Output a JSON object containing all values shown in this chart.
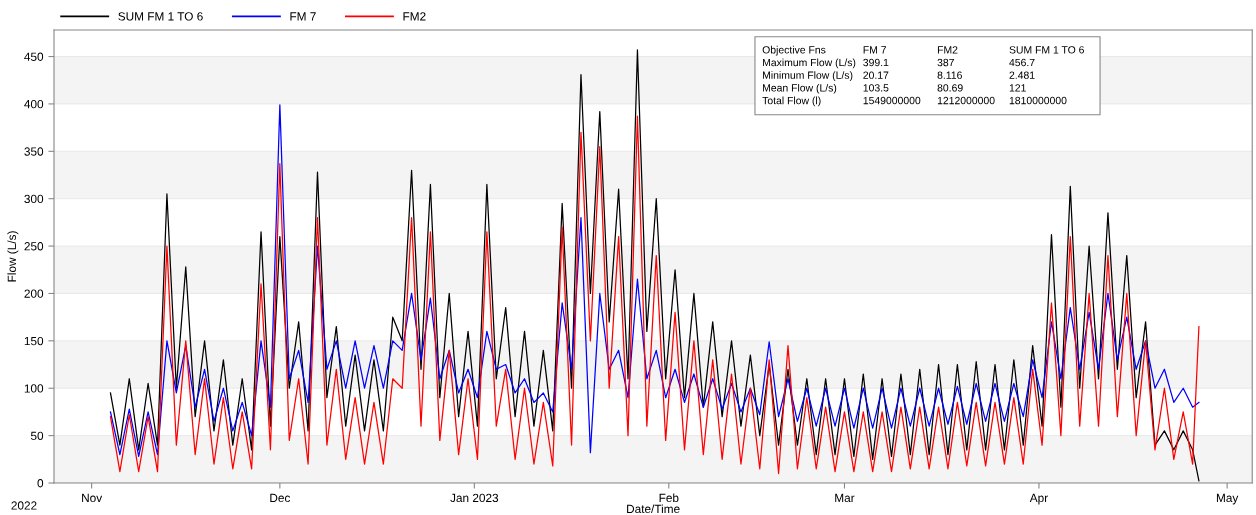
{
  "chart_data": {
    "type": "line",
    "xlabel": "Date/Time",
    "ylabel": "Flow (L/s)",
    "xlim": [
      "2022-10-26",
      "2023-05-05"
    ],
    "xticks": [
      {
        "value": "2022-11-01",
        "label": "Nov"
      },
      {
        "value": "2022-12-01",
        "label": "Dec"
      },
      {
        "value": "2023-01-01",
        "label": "Jan 2023"
      },
      {
        "value": "2023-02-01",
        "label": "Feb"
      },
      {
        "value": "2023-03-01",
        "label": "Mar"
      },
      {
        "value": "2023-04-01",
        "label": "Apr"
      },
      {
        "value": "2023-05-01",
        "label": "May"
      }
    ],
    "ylim": [
      0,
      478
    ],
    "yticks": [
      0,
      50,
      100,
      150,
      200,
      250,
      300,
      350,
      400,
      450
    ],
    "grid": "y",
    "legend": "top left",
    "line_style": "solid",
    "marker": "none",
    "x": [
      "2022-11-04T00:00",
      "2022-11-05T12:00",
      "2022-11-07T00:00",
      "2022-11-08T12:00",
      "2022-11-10T00:00",
      "2022-11-11T12:00",
      "2022-11-13T00:00",
      "2022-11-14T12:00",
      "2022-11-16T00:00",
      "2022-11-17T12:00",
      "2022-11-19T00:00",
      "2022-11-20T12:00",
      "2022-11-22T00:00",
      "2022-11-23T12:00",
      "2022-11-25T00:00",
      "2022-11-26T12:00",
      "2022-11-28T00:00",
      "2022-11-29T12:00",
      "2022-12-01T00:00",
      "2022-12-02T12:00",
      "2022-12-04T00:00",
      "2022-12-05T12:00",
      "2022-12-07T00:00",
      "2022-12-08T12:00",
      "2022-12-10T00:00",
      "2022-12-11T12:00",
      "2022-12-13T00:00",
      "2022-12-14T12:00",
      "2022-12-16T00:00",
      "2022-12-17T12:00",
      "2022-12-19T00:00",
      "2022-12-20T12:00",
      "2022-12-22T00:00",
      "2022-12-23T12:00",
      "2022-12-25T00:00",
      "2022-12-26T12:00",
      "2022-12-28T00:00",
      "2022-12-29T12:00",
      "2022-12-31T00:00",
      "2023-01-01T12:00",
      "2023-01-03T00:00",
      "2023-01-04T12:00",
      "2023-01-06T00:00",
      "2023-01-07T12:00",
      "2023-01-09T00:00",
      "2023-01-10T12:00",
      "2023-01-12T00:00",
      "2023-01-13T12:00",
      "2023-01-15T00:00",
      "2023-01-16T12:00",
      "2023-01-18T00:00",
      "2023-01-19T12:00",
      "2023-01-21T00:00",
      "2023-01-22T12:00",
      "2023-01-24T00:00",
      "2023-01-25T12:00",
      "2023-01-27T00:00",
      "2023-01-28T12:00",
      "2023-01-30T00:00",
      "2023-01-31T12:00",
      "2023-02-02T00:00",
      "2023-02-03T12:00",
      "2023-02-05T00:00",
      "2023-02-06T12:00",
      "2023-02-08T00:00",
      "2023-02-09T12:00",
      "2023-02-11T00:00",
      "2023-02-12T12:00",
      "2023-02-14T00:00",
      "2023-02-15T12:00",
      "2023-02-17T00:00",
      "2023-02-18T12:00",
      "2023-02-20T00:00",
      "2023-02-21T12:00",
      "2023-02-23T00:00",
      "2023-02-24T12:00",
      "2023-02-26T00:00",
      "2023-02-27T12:00",
      "2023-03-01T00:00",
      "2023-03-02T12:00",
      "2023-03-04T00:00",
      "2023-03-05T12:00",
      "2023-03-07T00:00",
      "2023-03-08T12:00",
      "2023-03-10T00:00",
      "2023-03-11T12:00",
      "2023-03-13T00:00",
      "2023-03-14T12:00",
      "2023-03-16T00:00",
      "2023-03-17T12:00",
      "2023-03-19T00:00",
      "2023-03-20T12:00",
      "2023-03-22T00:00",
      "2023-03-23T12:00",
      "2023-03-25T00:00",
      "2023-03-26T12:00",
      "2023-03-28T00:00",
      "2023-03-29T12:00",
      "2023-03-31T00:00",
      "2023-04-01T12:00",
      "2023-04-03T00:00",
      "2023-04-04T12:00",
      "2023-04-06T00:00",
      "2023-04-07T12:00",
      "2023-04-09T00:00",
      "2023-04-10T12:00",
      "2023-04-12T00:00",
      "2023-04-13T12:00",
      "2023-04-15T00:00",
      "2023-04-16T12:00",
      "2023-04-18T00:00",
      "2023-04-19T12:00",
      "2023-04-21T00:00",
      "2023-04-22T12:00",
      "2023-04-24T00:00",
      "2023-04-25T12:00",
      "2023-04-26T12:00"
    ],
    "series": [
      {
        "name": "SUM FM 1 TO 6",
        "color": "#000000",
        "values": [
          95,
          40,
          110,
          35,
          105,
          40,
          305,
          100,
          228,
          70,
          150,
          55,
          130,
          40,
          110,
          35,
          265,
          60,
          260,
          100,
          170,
          55,
          328,
          90,
          165,
          60,
          135,
          55,
          130,
          55,
          175,
          150,
          330,
          120,
          315,
          90,
          200,
          70,
          160,
          60,
          315,
          110,
          185,
          70,
          160,
          60,
          140,
          55,
          295,
          100,
          431,
          200,
          392,
          170,
          310,
          110,
          457,
          160,
          300,
          110,
          225,
          90,
          200,
          80,
          170,
          70,
          150,
          60,
          135,
          50,
          125,
          40,
          120,
          40,
          110,
          30,
          110,
          30,
          110,
          28,
          115,
          25,
          110,
          28,
          115,
          30,
          120,
          30,
          125,
          30,
          125,
          35,
          128,
          35,
          125,
          35,
          130,
          40,
          145,
          60,
          262,
          80,
          313,
          100,
          250,
          110,
          285,
          120,
          240,
          90,
          170,
          40,
          55,
          35,
          55,
          35,
          2.481
        ]
      },
      {
        "name": "FM 7",
        "color": "#0000ff",
        "values": [
          75,
          30,
          78,
          28,
          75,
          30,
          150,
          95,
          145,
          80,
          120,
          65,
          100,
          55,
          85,
          50,
          150,
          80,
          399,
          110,
          140,
          85,
          250,
          120,
          150,
          100,
          150,
          100,
          145,
          100,
          150,
          140,
          200,
          130,
          195,
          110,
          140,
          95,
          120,
          90,
          160,
          120,
          125,
          95,
          110,
          85,
          95,
          75,
          190,
          120,
          280,
          32,
          200,
          120,
          140,
          90,
          215,
          110,
          140,
          90,
          120,
          85,
          115,
          80,
          110,
          78,
          105,
          75,
          100,
          72,
          149,
          70,
          110,
          65,
          100,
          60,
          100,
          60,
          100,
          58,
          100,
          58,
          100,
          58,
          100,
          60,
          100,
          60,
          100,
          62,
          102,
          62,
          105,
          65,
          105,
          65,
          105,
          70,
          130,
          90,
          170,
          110,
          185,
          120,
          180,
          120,
          200,
          130,
          175,
          120,
          150,
          100,
          120,
          85,
          100,
          80,
          85
        ]
      },
      {
        "name": "FM2",
        "color": "#ff0000",
        "values": [
          70,
          12,
          72,
          12,
          70,
          12,
          250,
          40,
          150,
          30,
          110,
          20,
          90,
          15,
          75,
          15,
          210,
          35,
          337,
          45,
          110,
          20,
          280,
          40,
          120,
          25,
          90,
          20,
          85,
          20,
          110,
          100,
          280,
          60,
          265,
          45,
          140,
          30,
          110,
          25,
          265,
          60,
          120,
          25,
          100,
          20,
          85,
          18,
          270,
          40,
          370,
          150,
          355,
          100,
          260,
          50,
          387,
          60,
          240,
          45,
          180,
          35,
          150,
          30,
          130,
          25,
          115,
          20,
          100,
          15,
          130,
          10,
          145,
          15,
          90,
          15,
          80,
          12,
          75,
          12,
          75,
          12,
          75,
          12,
          80,
          15,
          80,
          15,
          80,
          15,
          85,
          18,
          85,
          18,
          85,
          20,
          90,
          20,
          120,
          40,
          190,
          50,
          260,
          60,
          200,
          60,
          240,
          70,
          200,
          50,
          150,
          35,
          100,
          25,
          75,
          20,
          165
        ]
      }
    ],
    "annotations": [
      "2022",
      "Objective Fns",
      "FM 7",
      "FM2",
      "SUM FM 1 TO 6",
      "Maximum Flow (L/s)",
      "399.1",
      "387",
      "456.7",
      "Minimum Flow (L/s)",
      "20.17",
      "8.116",
      "2.481",
      "Mean Flow (L/s)",
      "103.5",
      "80.69",
      "121",
      "Total Flow (l)",
      "1549000000",
      "1212000000",
      "1810000000"
    ]
  }
}
